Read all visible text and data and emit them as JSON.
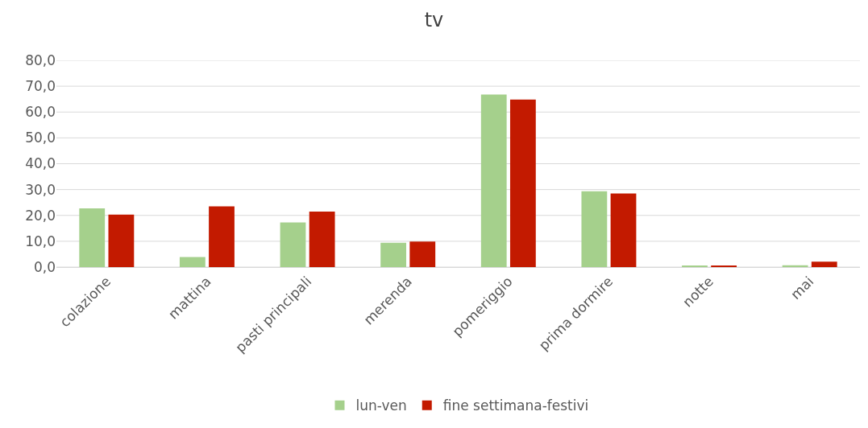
{
  "chart_data": {
    "type": "bar",
    "title": "tv",
    "categories": [
      "colazione",
      "mattina",
      "pasti principali",
      "merenda",
      "pomeriggio",
      "prima dormire",
      "notte",
      "mai"
    ],
    "series": [
      {
        "name": "lun-ven",
        "color": "#a5d08c",
        "values": [
          22.7,
          3.9,
          17.3,
          9.4,
          66.8,
          29.3,
          0.4,
          0.7
        ]
      },
      {
        "name": "fine settimana-festivi",
        "color": "#c31a00",
        "values": [
          20.3,
          23.5,
          21.5,
          9.9,
          64.8,
          28.5,
          0.4,
          2.1
        ]
      }
    ],
    "ylim": [
      0,
      80
    ],
    "yticks": [
      {
        "value": 0,
        "label": "0,0"
      },
      {
        "value": 10,
        "label": "10,0"
      },
      {
        "value": 20,
        "label": "20,0"
      },
      {
        "value": 30,
        "label": "30,0"
      },
      {
        "value": 40,
        "label": "40,0"
      },
      {
        "value": 50,
        "label": "50,0"
      },
      {
        "value": 60,
        "label": "60,0"
      },
      {
        "value": 70,
        "label": "70,0"
      },
      {
        "value": 80,
        "label": "80,0"
      }
    ],
    "grid": "y",
    "legend": "bottom"
  }
}
